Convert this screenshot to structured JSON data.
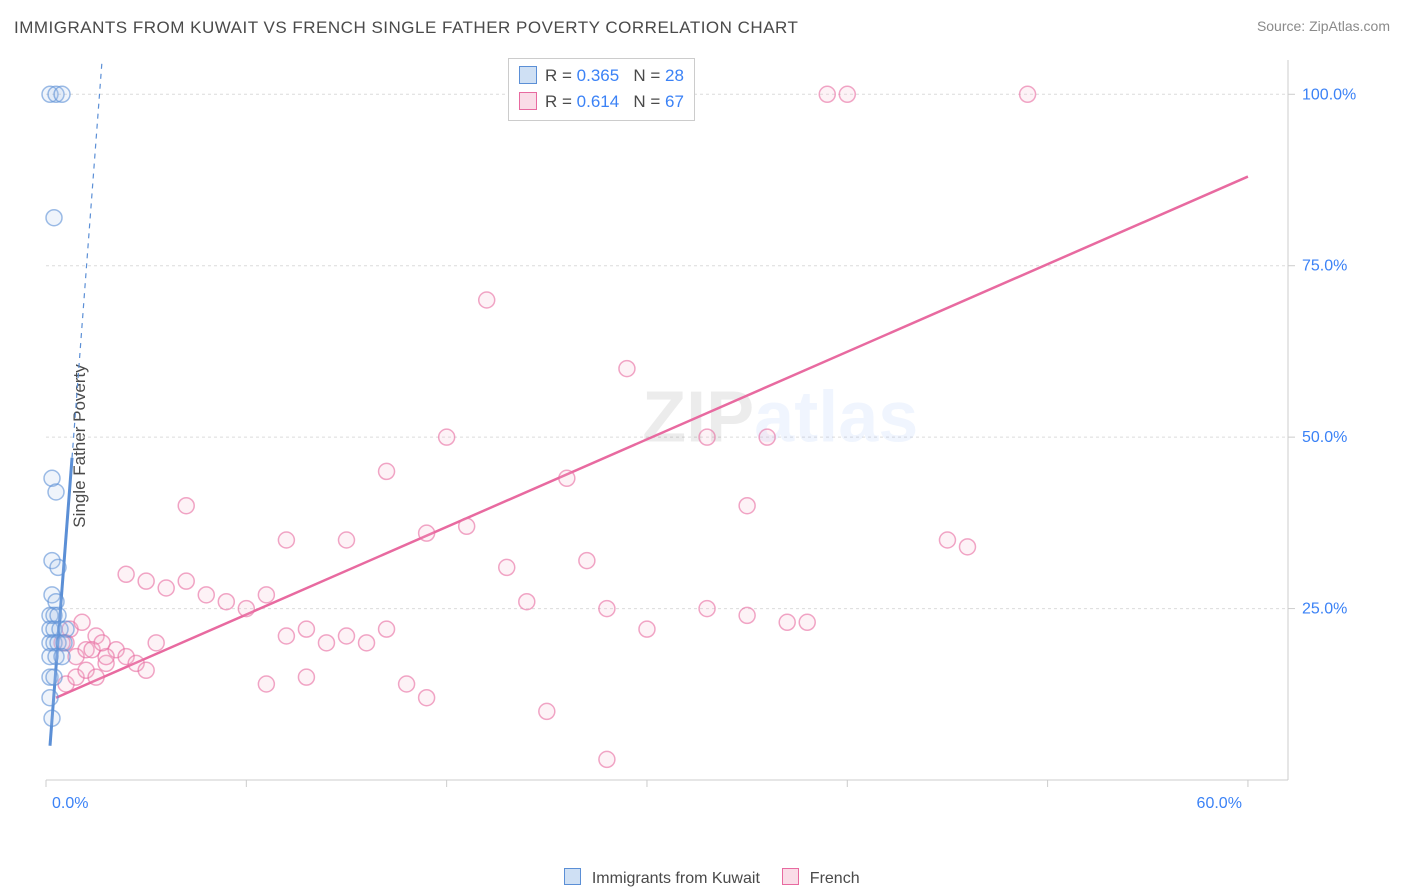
{
  "title": "IMMIGRANTS FROM KUWAIT VS FRENCH SINGLE FATHER POVERTY CORRELATION CHART",
  "source": "Source: ZipAtlas.com",
  "ylabel": "Single Father Poverty",
  "watermark": {
    "zip": "ZIP",
    "atlas": "atlas"
  },
  "chart": {
    "type": "scatter",
    "xlim": [
      0,
      62
    ],
    "ylim": [
      0,
      105
    ],
    "xticks": [
      0,
      10,
      20,
      30,
      40,
      50,
      60
    ],
    "xtick_labels": [
      "0.0%",
      "",
      "",
      "",
      "",
      "",
      "60.0%"
    ],
    "yticks": [
      25,
      50,
      75,
      100
    ],
    "ytick_labels": [
      "25.0%",
      "50.0%",
      "75.0%",
      "100.0%"
    ],
    "background": "#ffffff",
    "grid_color": "#dcdcdc",
    "axis_color": "#cccccc",
    "tick_label_color": "#3b82f6",
    "marker_radius": 8,
    "marker_stroke_width": 1.5,
    "marker_fill_opacity": 0.18,
    "series": [
      {
        "name": "Immigrants from Kuwait",
        "color": "#5b8fd6",
        "fill": "#a7c3e8",
        "R": "0.365",
        "N": "28",
        "regression": {
          "x1": 0.2,
          "y1": 5,
          "x2": 1.3,
          "y2": 47,
          "dash_to_x": 2.8,
          "dash_to_y": 105
        },
        "points": [
          [
            0.2,
            100
          ],
          [
            0.5,
            100
          ],
          [
            0.8,
            100
          ],
          [
            0.4,
            82
          ],
          [
            0.3,
            44
          ],
          [
            0.5,
            42
          ],
          [
            0.3,
            32
          ],
          [
            0.6,
            31
          ],
          [
            0.3,
            27
          ],
          [
            0.5,
            26
          ],
          [
            0.2,
            24
          ],
          [
            0.4,
            24
          ],
          [
            0.6,
            24
          ],
          [
            0.2,
            22
          ],
          [
            0.4,
            22
          ],
          [
            0.7,
            22
          ],
          [
            1.0,
            22
          ],
          [
            0.2,
            20
          ],
          [
            0.4,
            20
          ],
          [
            0.6,
            20
          ],
          [
            0.9,
            20
          ],
          [
            0.2,
            18
          ],
          [
            0.5,
            18
          ],
          [
            0.8,
            18
          ],
          [
            0.2,
            15
          ],
          [
            0.4,
            15
          ],
          [
            0.2,
            12
          ],
          [
            0.3,
            9
          ]
        ]
      },
      {
        "name": "French",
        "color": "#e86aa0",
        "fill": "#f5b7ce",
        "R": "0.614",
        "N": "67",
        "regression": {
          "x1": 0.5,
          "y1": 12,
          "x2": 60,
          "y2": 88
        },
        "points": [
          [
            7,
            40
          ],
          [
            39,
            100
          ],
          [
            40,
            100
          ],
          [
            49,
            100
          ],
          [
            22,
            70
          ],
          [
            29,
            60
          ],
          [
            20,
            50
          ],
          [
            33,
            50
          ],
          [
            36,
            50
          ],
          [
            17,
            45
          ],
          [
            26,
            44
          ],
          [
            12,
            35
          ],
          [
            15,
            35
          ],
          [
            19,
            36
          ],
          [
            21,
            37
          ],
          [
            23,
            31
          ],
          [
            24,
            26
          ],
          [
            27,
            32
          ],
          [
            28,
            25
          ],
          [
            30,
            22
          ],
          [
            33,
            25
          ],
          [
            35,
            24
          ],
          [
            35,
            40
          ],
          [
            38,
            23
          ],
          [
            45,
            35
          ],
          [
            4,
            30
          ],
          [
            5,
            29
          ],
          [
            6,
            28
          ],
          [
            7,
            29
          ],
          [
            8,
            27
          ],
          [
            9,
            26
          ],
          [
            10,
            25
          ],
          [
            11,
            27
          ],
          [
            12,
            21
          ],
          [
            13,
            22
          ],
          [
            14,
            20
          ],
          [
            15,
            21
          ],
          [
            16,
            20
          ],
          [
            17,
            22
          ],
          [
            18,
            14
          ],
          [
            1,
            20
          ],
          [
            1.5,
            18
          ],
          [
            2,
            19
          ],
          [
            2.5,
            21
          ],
          [
            3,
            17
          ],
          [
            3.5,
            19
          ],
          [
            4,
            18
          ],
          [
            4.5,
            17
          ],
          [
            5,
            16
          ],
          [
            5.5,
            20
          ],
          [
            1,
            14
          ],
          [
            1.5,
            15
          ],
          [
            2,
            16
          ],
          [
            2.5,
            15
          ],
          [
            3,
            18
          ],
          [
            0.8,
            20
          ],
          [
            1.2,
            22
          ],
          [
            1.8,
            23
          ],
          [
            2.3,
            19
          ],
          [
            2.8,
            20
          ],
          [
            19,
            12
          ],
          [
            25,
            10
          ],
          [
            28,
            3
          ],
          [
            11,
            14
          ],
          [
            13,
            15
          ],
          [
            46,
            34
          ],
          [
            37,
            23
          ]
        ]
      }
    ]
  },
  "legend": {
    "rows": [
      {
        "swatch_fill": "#cfe0f4",
        "swatch_border": "#5b8fd6",
        "R": "0.365",
        "N": "28"
      },
      {
        "swatch_fill": "#fadce7",
        "swatch_border": "#e86aa0",
        "R": "0.614",
        "N": "67"
      }
    ]
  },
  "bottom_legend": {
    "items": [
      {
        "fill": "#cfe0f4",
        "border": "#5b8fd6",
        "label": "Immigrants from Kuwait"
      },
      {
        "fill": "#fadce7",
        "border": "#e86aa0",
        "label": "French"
      }
    ]
  }
}
